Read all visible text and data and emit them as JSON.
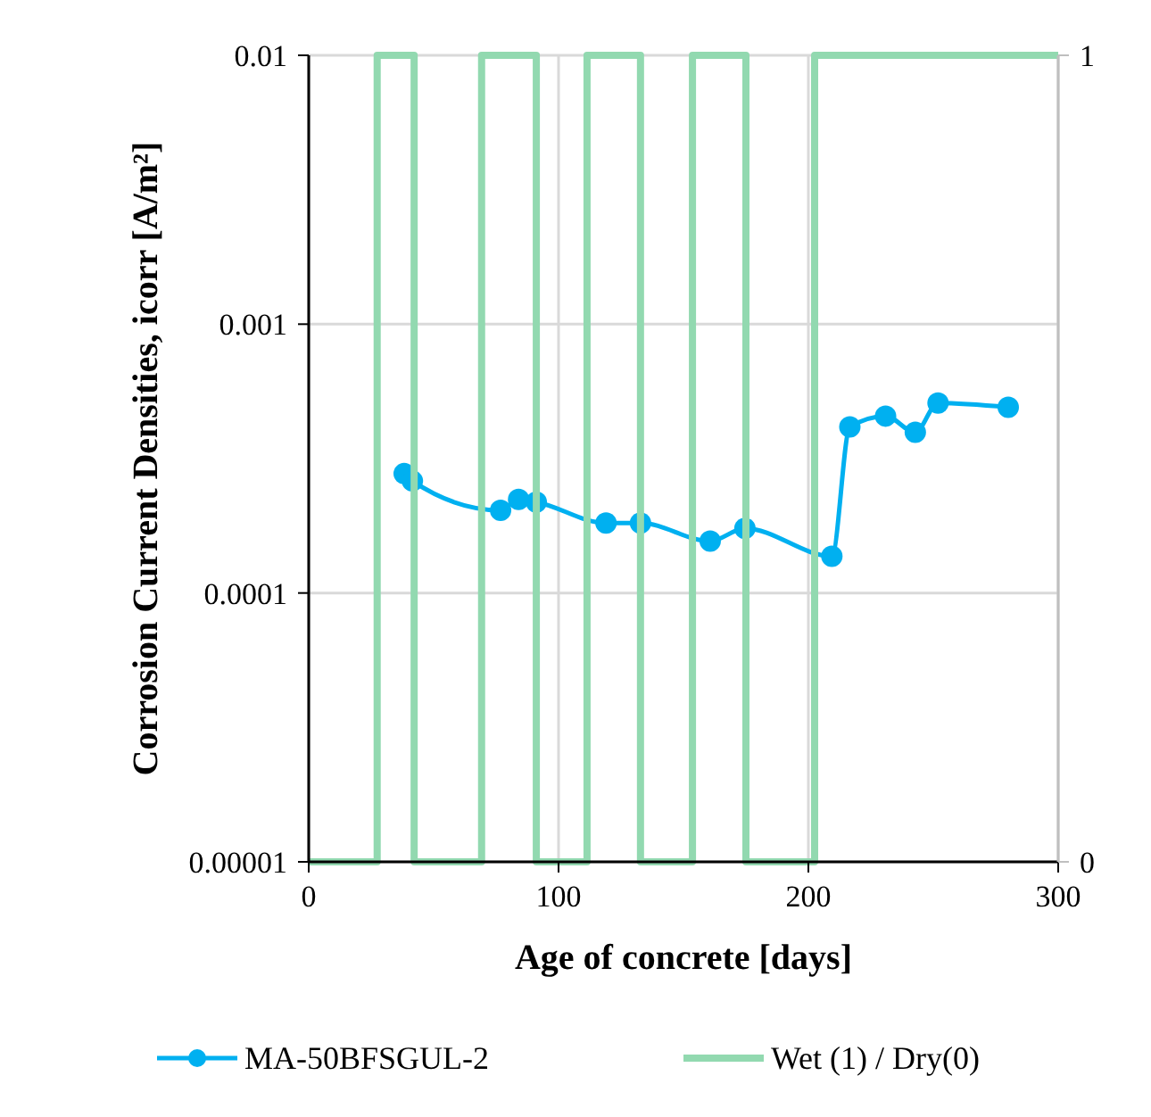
{
  "chart_data": {
    "type": "line",
    "xlabel": "Age of concrete [days]",
    "ylabel": "Corrosion Current Densities, icorr [A/m²]",
    "log": "y",
    "grid": true,
    "legend": "bottom",
    "xlim": [
      0,
      300
    ],
    "xticks": [
      0,
      100,
      200,
      300
    ],
    "ylim": [
      1e-05,
      0.01
    ],
    "yticks": [
      {
        "value": 1e-05,
        "label": "0.00001"
      },
      {
        "value": 0.0001,
        "label": "0.0001"
      },
      {
        "value": 0.001,
        "label": "0.001"
      },
      {
        "value": 0.01,
        "label": "0.01"
      }
    ],
    "y2lim": [
      0,
      1
    ],
    "y2ticks": [
      0,
      1
    ],
    "series": [
      {
        "name": "MA-50BFSGUL-2",
        "type": "line",
        "color": "#00b0f0",
        "marker": "circle",
        "x": [
          38.2,
          41.5,
          76.8,
          84,
          91.1,
          119,
          132.8,
          160.7,
          174.6,
          209.4,
          216.6,
          230.9,
          242.8,
          251.9,
          280
        ],
        "values": [
          0.000278,
          0.000261,
          0.000203,
          0.000223,
          0.000218,
          0.000182,
          0.000182,
          0.000156,
          0.000174,
          0.000137,
          0.000415,
          0.000455,
          0.000396,
          0.000509,
          0.000491
        ]
      },
      {
        "name": "Wet (1) / Dry(0)",
        "type": "step",
        "axis": "y2",
        "color": "#92d9b0",
        "marker": "none",
        "x": [
          0,
          27.4,
          42.2,
          69.2,
          91.1,
          111.4,
          132.8,
          153.6,
          175,
          202.5,
          300
        ],
        "values": [
          0,
          1,
          0,
          1,
          0,
          1,
          0,
          1,
          0,
          1,
          1
        ]
      }
    ]
  }
}
